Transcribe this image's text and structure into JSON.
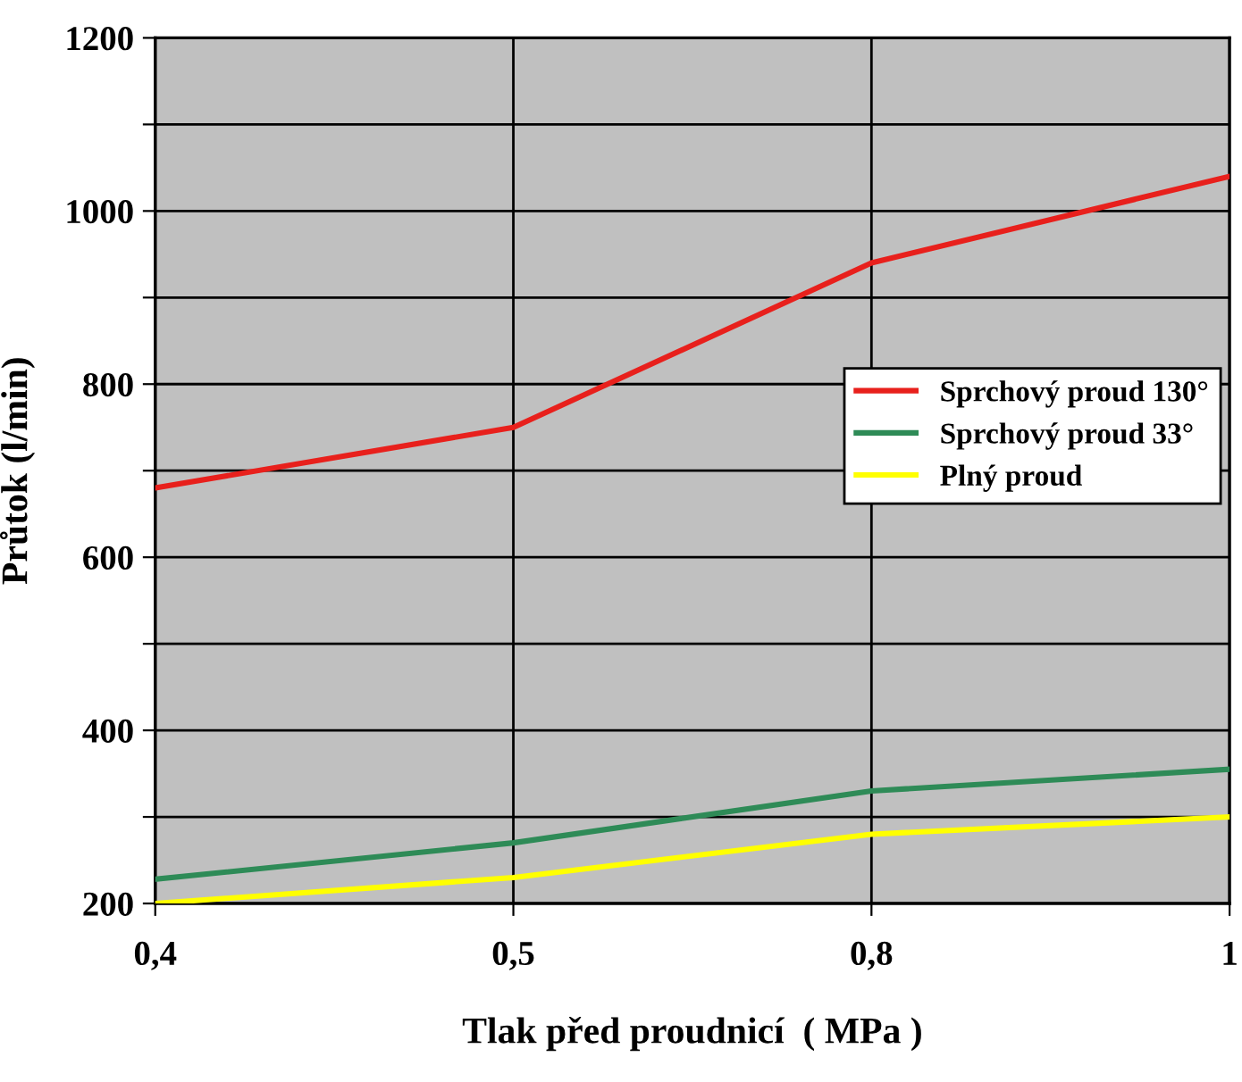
{
  "chart_data": {
    "type": "line",
    "xlabel": "Tlak před proudnicí  ( MPa )",
    "ylabel": "Průtok (l/min)",
    "categories": [
      "0,4",
      "0,5",
      "0,8",
      "1"
    ],
    "series": [
      {
        "name": "Sprchový proud 130°",
        "color": "#e8201c",
        "values": [
          680,
          750,
          940,
          1040
        ]
      },
      {
        "name": "Sprchový proud 33°",
        "color": "#2e8b57",
        "values": [
          228,
          270,
          330,
          355
        ]
      },
      {
        "name": "Plný proud",
        "color": "#ffff00",
        "values": [
          200,
          230,
          280,
          300
        ]
      }
    ],
    "ylim": [
      200,
      1200
    ],
    "yticks": [
      200,
      {
        "value": 300,
        "label": null
      },
      400,
      {
        "value": 500,
        "label": null
      },
      600,
      {
        "value": 700,
        "label": null
      },
      800,
      {
        "value": 900,
        "label": null
      },
      1000,
      {
        "value": 1100,
        "label": null
      },
      1200
    ],
    "grid": true,
    "legend": "right",
    "marker": "none",
    "line_style": "solid"
  }
}
